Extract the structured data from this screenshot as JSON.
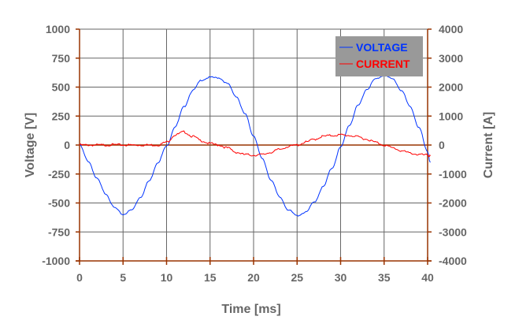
{
  "chart_data": {
    "type": "line",
    "title": "",
    "xlabel": "Time [ms]",
    "ylabel": "Voltage [V]",
    "y2label": "Current [A]",
    "xlim": [
      0,
      40
    ],
    "ylim": [
      -1000,
      1000
    ],
    "y2lim": [
      -4000,
      4000
    ],
    "xticks": [
      "0",
      "5",
      "10",
      "15",
      "20",
      "25",
      "30",
      "35",
      "40"
    ],
    "yticks": [
      "1000",
      "750",
      "500",
      "250",
      "0",
      "-250",
      "-500",
      "-750",
      "-1000"
    ],
    "y2ticks": [
      "4000",
      "3000",
      "2000",
      "1000",
      "0",
      "-1000",
      "-2000",
      "-3000",
      "-4000"
    ],
    "grid": true,
    "legend_position": "top-right",
    "series": [
      {
        "name": "VOLTAGE",
        "axis": "left",
        "color": "#0033ff",
        "x": [
          0,
          1,
          2,
          3,
          4,
          5,
          6,
          7,
          8,
          9,
          10,
          11,
          12,
          13,
          14,
          15,
          16,
          17,
          18,
          19,
          20,
          21,
          22,
          23,
          24,
          25,
          26,
          27,
          28,
          29,
          30,
          31,
          32,
          33,
          34,
          35,
          36,
          37,
          38,
          39,
          40,
          40.3
        ],
        "values": [
          0,
          -140,
          -290,
          -420,
          -540,
          -600,
          -560,
          -450,
          -310,
          -150,
          -10,
          160,
          330,
          470,
          560,
          585,
          580,
          530,
          420,
          270,
          80,
          -120,
          -300,
          -450,
          -560,
          -610,
          -580,
          -490,
          -360,
          -200,
          -20,
          170,
          340,
          480,
          570,
          600,
          570,
          470,
          330,
          150,
          -60,
          -150
        ]
      },
      {
        "name": "CURRENT",
        "axis": "right",
        "color": "#ff0000",
        "x": [
          0,
          1,
          2,
          3,
          4,
          5,
          6,
          7,
          8,
          9,
          10,
          11,
          12,
          13,
          14,
          15,
          16,
          17,
          18,
          19,
          20,
          21,
          22,
          23,
          24,
          25,
          26,
          27,
          28,
          29,
          30,
          31,
          32,
          33,
          34,
          35,
          36,
          37,
          38,
          39,
          40,
          40.3
        ],
        "values": [
          0,
          0,
          0,
          0,
          10,
          0,
          0,
          0,
          0,
          0,
          100,
          350,
          450,
          300,
          150,
          50,
          0,
          -100,
          -250,
          -330,
          -350,
          -330,
          -250,
          -150,
          -50,
          0,
          100,
          200,
          300,
          330,
          350,
          330,
          280,
          200,
          100,
          0,
          -100,
          -200,
          -280,
          -330,
          -350,
          -380
        ]
      }
    ]
  },
  "legend": {
    "items": [
      {
        "label": "VOLTAGE",
        "color": "#0033ff"
      },
      {
        "label": "CURRENT",
        "color": "#ff0000"
      }
    ],
    "background": "#999999"
  },
  "axes": {
    "xlabel": "Time [ms]",
    "ylabel": "Voltage [V]",
    "y2label": "Current [A]",
    "axis_color": "#993300",
    "grid_color": "#666666"
  }
}
